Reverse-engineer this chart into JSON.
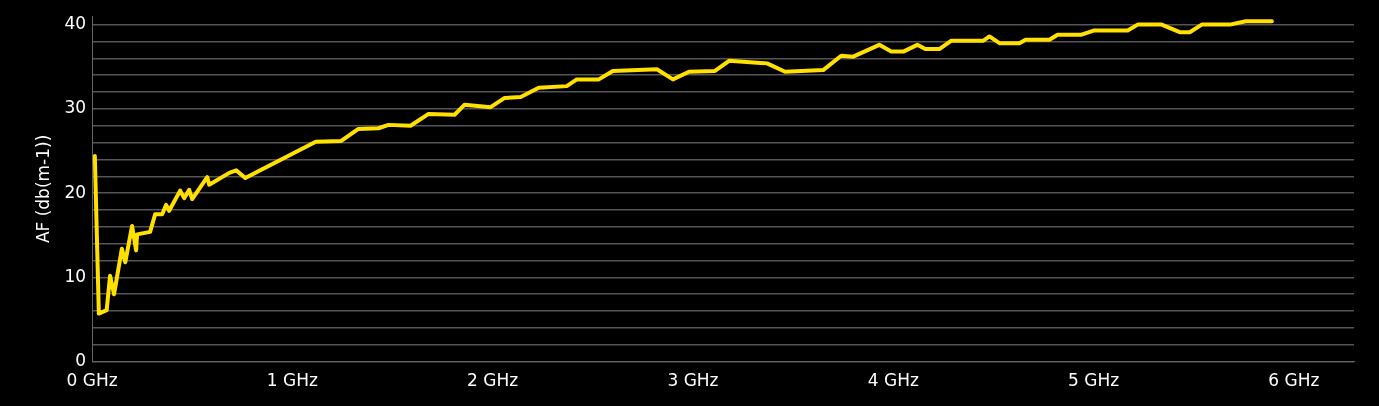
{
  "chart_data": {
    "type": "line",
    "ylabel": "AF (db(m-1))",
    "x": [
      0.014,
      0.034,
      0.073,
      0.09,
      0.11,
      0.149,
      0.166,
      0.2,
      0.22,
      0.225,
      0.29,
      0.315,
      0.35,
      0.37,
      0.385,
      0.44,
      0.46,
      0.485,
      0.5,
      0.575,
      0.585,
      0.685,
      0.72,
      0.765,
      1.117,
      1.244,
      1.328,
      1.43,
      1.48,
      1.59,
      1.68,
      1.81,
      1.86,
      1.99,
      2.06,
      2.14,
      2.23,
      2.37,
      2.42,
      2.53,
      2.6,
      2.82,
      2.9,
      2.98,
      3.11,
      3.18,
      3.37,
      3.46,
      3.65,
      3.74,
      3.8,
      3.93,
      3.99,
      4.05,
      4.12,
      4.16,
      4.23,
      4.29,
      4.45,
      4.48,
      4.53,
      4.63,
      4.66,
      4.78,
      4.82,
      4.94,
      5.0,
      5.17,
      5.22,
      5.34,
      5.43,
      5.48,
      5.54,
      5.68,
      5.76,
      5.89
    ],
    "series": [
      {
        "color": "#ffe000",
        "values": [
          24.4,
          5.7,
          6.1,
          10.2,
          8.0,
          13.4,
          11.8,
          16.1,
          13.2,
          15.1,
          15.4,
          17.5,
          17.5,
          18.6,
          17.9,
          20.3,
          19.4,
          20.4,
          19.3,
          21.9,
          21.0,
          22.4,
          22.7,
          21.8,
          26.1,
          26.2,
          27.6,
          27.7,
          28.1,
          28.0,
          29.4,
          29.3,
          30.5,
          30.2,
          31.3,
          31.4,
          32.5,
          32.7,
          33.5,
          33.5,
          34.5,
          34.7,
          33.5,
          34.4,
          34.5,
          35.7,
          35.4,
          34.4,
          34.6,
          36.3,
          36.2,
          37.6,
          36.8,
          36.8,
          37.6,
          37.1,
          37.1,
          38.1,
          38.1,
          38.6,
          37.8,
          37.8,
          38.2,
          38.2,
          38.8,
          38.8,
          39.3,
          39.3,
          40.0,
          40.0,
          39.1,
          39.1,
          40.0,
          40.0,
          40.4,
          40.4
        ]
      }
    ],
    "xlim": [
      0,
      6.3
    ],
    "xticks": [
      {
        "value": 0,
        "label": "0 GHz"
      },
      {
        "value": 1,
        "label": "1 GHz"
      },
      {
        "value": 2,
        "label": "2 GHz"
      },
      {
        "value": 3,
        "label": "3 GHz"
      },
      {
        "value": 4,
        "label": "4 GHz"
      },
      {
        "value": 5,
        "label": "5 GHz"
      },
      {
        "value": 6,
        "label": "6 GHz"
      }
    ],
    "ylim": [
      0,
      41
    ],
    "yticks": [
      0,
      {
        "value": 2,
        "label": null
      },
      {
        "value": 4,
        "label": null
      },
      {
        "value": 6,
        "label": null
      },
      {
        "value": 8,
        "label": null
      },
      10,
      {
        "value": 12,
        "label": null
      },
      {
        "value": 14,
        "label": null
      },
      {
        "value": 16,
        "label": null
      },
      {
        "value": 18,
        "label": null
      },
      20,
      {
        "value": 22,
        "label": null
      },
      {
        "value": 24,
        "label": null
      },
      {
        "value": 26,
        "label": null
      },
      {
        "value": 28,
        "label": null
      },
      30,
      {
        "value": 32,
        "label": null
      },
      {
        "value": 34,
        "label": null
      },
      {
        "value": 36,
        "label": null
      },
      {
        "value": 38,
        "label": null
      },
      40
    ],
    "grid": "y",
    "legend": false,
    "marker": "none",
    "line_style": "solid"
  }
}
